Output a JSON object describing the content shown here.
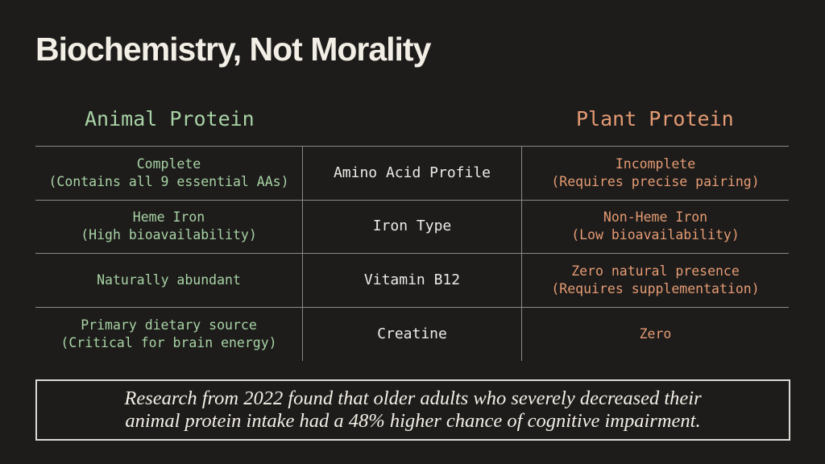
{
  "slide": {
    "title": "Biochemistry, Not Morality",
    "column_headers": {
      "animal": "Animal Protein",
      "plant": "Plant Protein"
    },
    "colors": {
      "background": "#1d1c1b",
      "animal_accent": "#a8d3a4",
      "plant_accent": "#e59b73",
      "text": "#f3efe6"
    },
    "rows": [
      {
        "animal": [
          "Complete",
          "(Contains all 9 essential AAs)"
        ],
        "metric": "Amino Acid Profile",
        "plant": [
          "Incomplete",
          "(Requires precise pairing)"
        ]
      },
      {
        "animal": [
          "Heme Iron",
          "(High bioavailability)"
        ],
        "metric": "Iron Type",
        "plant": [
          "Non-Heme Iron",
          "(Low bioavailability)"
        ]
      },
      {
        "animal": [
          "Naturally abundant",
          ""
        ],
        "metric": "Vitamin B12",
        "plant": [
          "Zero natural presence",
          "(Requires supplementation)"
        ]
      },
      {
        "animal": [
          "Primary dietary source",
          "(Critical for brain energy)"
        ],
        "metric": "Creatine",
        "plant": [
          "Zero",
          ""
        ]
      }
    ],
    "quote": {
      "line1": "Research from 2022 found that older adults who severely decreased their",
      "line2": "animal protein intake had a 48% higher chance of cognitive impairment."
    }
  }
}
